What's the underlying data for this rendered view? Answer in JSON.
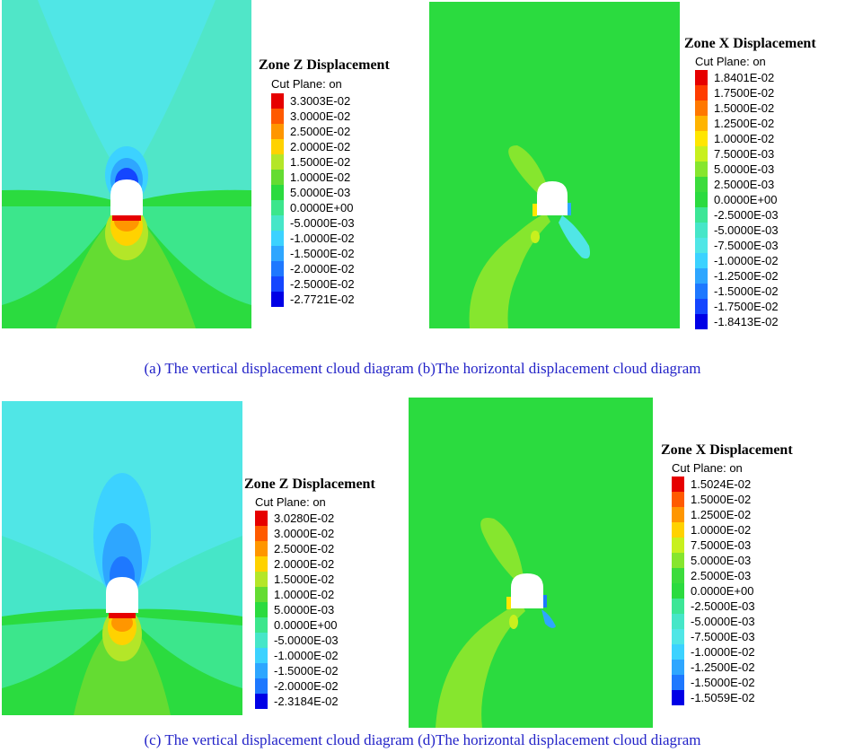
{
  "palette": {
    "blue5": "#0000e6",
    "blue4": "#1e64ff",
    "blue3": "#2ea6ff",
    "blue2": "#3cd2ff",
    "cyan1": "#50e6dc",
    "cyan0": "#46e6c8",
    "green": "#2bdb3f",
    "lime": "#86e62e",
    "yellow": "#f0f000",
    "gold": "#ffc800",
    "orange": "#ff8c00",
    "red": "#e60000"
  },
  "panels": [
    {
      "id": "a",
      "legend": {
        "title": "Zone Z Displacement",
        "subtitle": "Cut Plane: on",
        "entries": [
          {
            "label": "3.3003E-02",
            "color": "#e60000"
          },
          {
            "label": "3.0000E-02",
            "color": "#ff5a00"
          },
          {
            "label": "2.5000E-02",
            "color": "#ff9600"
          },
          {
            "label": "2.0000E-02",
            "color": "#ffd200"
          },
          {
            "label": "1.5000E-02",
            "color": "#b4e628"
          },
          {
            "label": "1.0000E-02",
            "color": "#64dc32"
          },
          {
            "label": "5.0000E-03",
            "color": "#2bdb3f"
          },
          {
            "label": "0.0000E+00",
            "color": "#3ce68c"
          },
          {
            "label": "-5.0000E-03",
            "color": "#46e6c8"
          },
          {
            "label": "-1.0000E-02",
            "color": "#3cd2ff"
          },
          {
            "label": "-1.5000E-02",
            "color": "#2ea6ff"
          },
          {
            "label": "-2.0000E-02",
            "color": "#1e78ff"
          },
          {
            "label": "-2.5000E-02",
            "color": "#1446ff"
          },
          {
            "label": "-2.7721E-02",
            "color": "#0000e6"
          }
        ]
      }
    },
    {
      "id": "b",
      "legend": {
        "title": "Zone X Displacement",
        "subtitle": "Cut Plane: on",
        "entries": [
          {
            "label": "1.8401E-02",
            "color": "#e60000"
          },
          {
            "label": "1.7500E-02",
            "color": "#ff3c00"
          },
          {
            "label": "1.5000E-02",
            "color": "#ff7800"
          },
          {
            "label": "1.2500E-02",
            "color": "#ffb400"
          },
          {
            "label": "1.0000E-02",
            "color": "#ffe600"
          },
          {
            "label": "7.5000E-03",
            "color": "#c8f01e"
          },
          {
            "label": "5.0000E-03",
            "color": "#86e62e"
          },
          {
            "label": "2.5000E-03",
            "color": "#3cdc3c"
          },
          {
            "label": "0.0000E+00",
            "color": "#2bdb3f"
          },
          {
            "label": "-2.5000E-03",
            "color": "#3ce696"
          },
          {
            "label": "-5.0000E-03",
            "color": "#46e6c8"
          },
          {
            "label": "-7.5000E-03",
            "color": "#50e6e6"
          },
          {
            "label": "-1.0000E-02",
            "color": "#3cd2ff"
          },
          {
            "label": "-1.2500E-02",
            "color": "#2ea6ff"
          },
          {
            "label": "-1.5000E-02",
            "color": "#1e78ff"
          },
          {
            "label": "-1.7500E-02",
            "color": "#1446ff"
          },
          {
            "label": "-1.8413E-02",
            "color": "#0000e6"
          }
        ]
      }
    },
    {
      "id": "c",
      "legend": {
        "title": "Zone Z Displacement",
        "subtitle": "Cut Plane: on",
        "entries": [
          {
            "label": "3.0280E-02",
            "color": "#e60000"
          },
          {
            "label": "3.0000E-02",
            "color": "#ff5a00"
          },
          {
            "label": "2.5000E-02",
            "color": "#ff9600"
          },
          {
            "label": "2.0000E-02",
            "color": "#ffd200"
          },
          {
            "label": "1.5000E-02",
            "color": "#b4e628"
          },
          {
            "label": "1.0000E-02",
            "color": "#64dc32"
          },
          {
            "label": "5.0000E-03",
            "color": "#2bdb3f"
          },
          {
            "label": "0.0000E+00",
            "color": "#3ce68c"
          },
          {
            "label": "-5.0000E-03",
            "color": "#46e6c8"
          },
          {
            "label": "-1.0000E-02",
            "color": "#3cd2ff"
          },
          {
            "label": "-1.5000E-02",
            "color": "#2ea6ff"
          },
          {
            "label": "-2.0000E-02",
            "color": "#1e78ff"
          },
          {
            "label": "-2.3184E-02",
            "color": "#0000e6"
          }
        ]
      }
    },
    {
      "id": "d",
      "legend": {
        "title": "Zone X Displacement",
        "subtitle": "Cut Plane: on",
        "entries": [
          {
            "label": "1.5024E-02",
            "color": "#e60000"
          },
          {
            "label": "1.5000E-02",
            "color": "#ff5a00"
          },
          {
            "label": "1.2500E-02",
            "color": "#ff9600"
          },
          {
            "label": "1.0000E-02",
            "color": "#ffd200"
          },
          {
            "label": "7.5000E-03",
            "color": "#c8f01e"
          },
          {
            "label": "5.0000E-03",
            "color": "#86e62e"
          },
          {
            "label": "2.5000E-03",
            "color": "#3cdc3c"
          },
          {
            "label": "0.0000E+00",
            "color": "#2bdb3f"
          },
          {
            "label": "-2.5000E-03",
            "color": "#3ce696"
          },
          {
            "label": "-5.0000E-03",
            "color": "#46e6c8"
          },
          {
            "label": "-7.5000E-03",
            "color": "#50e6e6"
          },
          {
            "label": "-1.0000E-02",
            "color": "#3cd2ff"
          },
          {
            "label": "-1.2500E-02",
            "color": "#2ea6ff"
          },
          {
            "label": "-1.5000E-02",
            "color": "#1e78ff"
          },
          {
            "label": "-1.5059E-02",
            "color": "#0000e6"
          }
        ]
      }
    }
  ],
  "captions": {
    "top": "(a) The vertical displacement cloud diagram (b)The horizontal displacement cloud diagram",
    "bottom": "(c) The vertical displacement cloud diagram (d)The horizontal displacement cloud diagram"
  }
}
